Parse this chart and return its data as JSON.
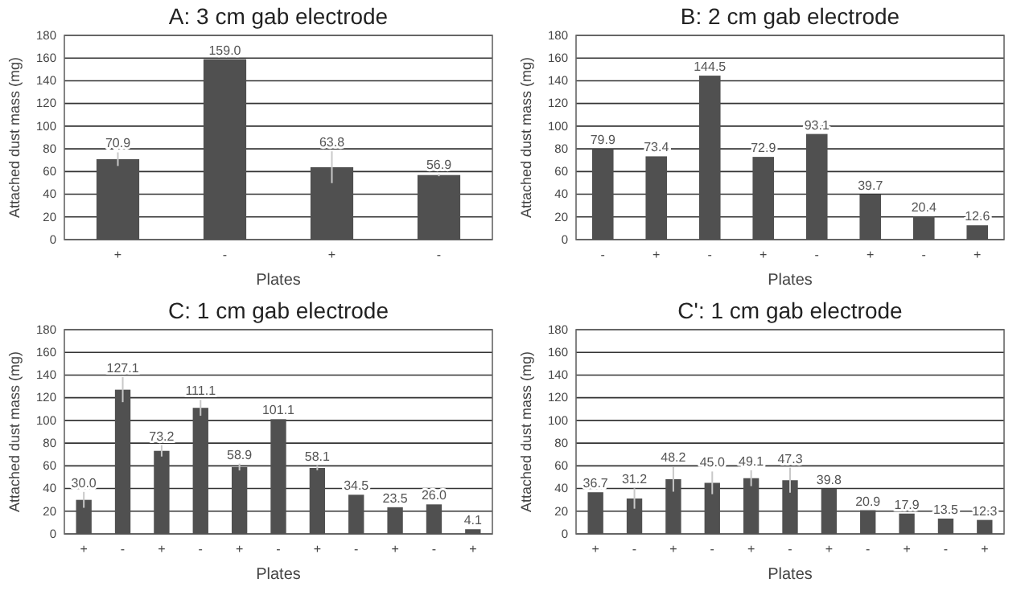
{
  "chart_data": [
    {
      "type": "bar",
      "title": "A: 3 cm gab electrode",
      "xlabel": "Plates",
      "ylabel": "Attached dust mass (mg)",
      "categories": [
        "+",
        "-",
        "+",
        "-"
      ],
      "values": [
        70.9,
        159.0,
        63.8,
        56.9
      ],
      "value_labels": [
        "70.9",
        "159.0",
        "63.8",
        "56.9"
      ],
      "errors": [
        6,
        null,
        14,
        1
      ],
      "color": "#505050",
      "ylim": [
        0,
        180
      ],
      "yticks": [
        0,
        20,
        40,
        60,
        80,
        100,
        120,
        140,
        160,
        180
      ],
      "grid": "y"
    },
    {
      "type": "bar",
      "title": "B: 2 cm gab electrode",
      "xlabel": "Plates",
      "ylabel": "Attached dust mass (mg)",
      "categories": [
        "-",
        "+",
        "-",
        "+",
        "-",
        "+",
        "-",
        "+"
      ],
      "values": [
        79.9,
        73.4,
        144.5,
        72.9,
        93.1,
        39.7,
        20.4,
        12.6
      ],
      "value_labels": [
        "79.9",
        "73.4",
        "144.5",
        "72.9",
        "93.1",
        "39.7",
        "20.4",
        "12.6"
      ],
      "color": "#505050",
      "ylim": [
        0,
        180
      ],
      "yticks": [
        0,
        20,
        40,
        60,
        80,
        100,
        120,
        140,
        160,
        180
      ],
      "grid": "y"
    },
    {
      "type": "bar",
      "title": "C: 1 cm gab electrode",
      "xlabel": "Plates",
      "ylabel": "Attached dust mass (mg)",
      "categories": [
        "+",
        "-",
        "+",
        "-",
        "+",
        "-",
        "+",
        "-",
        "+",
        "-",
        "+"
      ],
      "values": [
        30.0,
        127.1,
        73.2,
        111.1,
        58.9,
        101.1,
        58.1,
        34.5,
        23.5,
        26.0,
        4.1
      ],
      "value_labels": [
        "30.0",
        "127.1",
        "73.2",
        "111.1",
        "58.9",
        "101.1",
        "58.1",
        "34.5",
        "23.5",
        "26.0",
        "4.1"
      ],
      "errors": [
        7,
        11,
        5,
        7,
        3,
        null,
        2,
        null,
        null,
        null,
        null
      ],
      "color": "#505050",
      "ylim": [
        0,
        180
      ],
      "yticks": [
        0,
        20,
        40,
        60,
        80,
        100,
        120,
        140,
        160,
        180
      ],
      "grid": "y"
    },
    {
      "type": "bar",
      "title": "C': 1 cm gab electrode",
      "xlabel": "Plates",
      "ylabel": "Attached dust mass (mg)",
      "categories": [
        "+",
        "-",
        "+",
        "-",
        "+",
        "-",
        "+",
        "-",
        "+",
        "-",
        "+"
      ],
      "values": [
        36.7,
        31.2,
        48.2,
        45.0,
        49.1,
        47.3,
        39.8,
        20.9,
        17.9,
        13.5,
        12.3
      ],
      "value_labels": [
        "36.7",
        "31.2",
        "48.2",
        "45.0",
        "49.1",
        "47.3",
        "39.8",
        "20.9",
        "17.9",
        "13.5",
        "12.3"
      ],
      "errors": [
        null,
        9,
        11,
        10,
        7,
        11,
        null,
        null,
        null,
        null,
        null
      ],
      "color": "#505050",
      "ylim": [
        0,
        180
      ],
      "yticks": [
        0,
        20,
        40,
        60,
        80,
        100,
        120,
        140,
        160,
        180
      ],
      "grid": "y"
    }
  ]
}
